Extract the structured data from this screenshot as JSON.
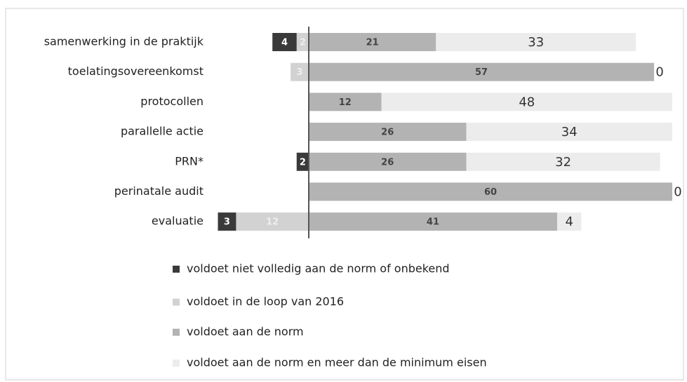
{
  "chart_data": {
    "type": "diverging_bar",
    "categories": [
      "samenwerking in de praktijk",
      "toelatingsovereenkomst",
      "protocollen",
      "parallelle actie",
      "PRN*",
      "perinatale audit",
      "evaluatie"
    ],
    "series": [
      {
        "name": "voldoet niet volledig aan de norm of onbekend",
        "color": "#3a3a3a",
        "side": "negative",
        "values": [
          4,
          null,
          null,
          null,
          2,
          null,
          3
        ]
      },
      {
        "name": "voldoet in de loop van 2016",
        "color": "#d2d2d2",
        "side": "negative",
        "values": [
          2,
          3,
          null,
          null,
          null,
          null,
          12
        ]
      },
      {
        "name": "voldoet aan de norm",
        "color": "#b3b3b3",
        "side": "positive",
        "values": [
          21,
          57,
          12,
          26,
          26,
          60,
          41
        ]
      },
      {
        "name": "voldoet aan de norm en meer dan de minimum eisen",
        "color": "#ececec",
        "side": "positive",
        "values": [
          33,
          0,
          48,
          34,
          32,
          0,
          4
        ]
      }
    ],
    "xlim": [
      -15,
      60
    ]
  }
}
